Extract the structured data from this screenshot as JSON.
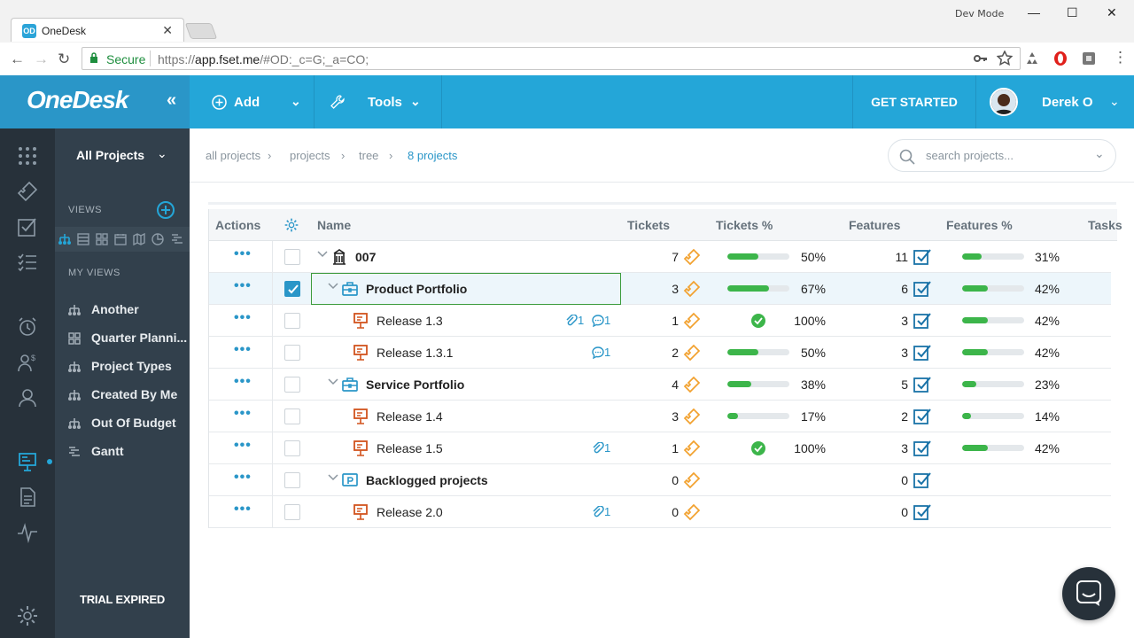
{
  "browser": {
    "tab_title": "OneDesk",
    "dev_mode": "Dev Mode",
    "secure_label": "Secure",
    "url_scheme": "https://",
    "url_host": "app.fset.me",
    "url_rest": "/#OD:_c=G;_a=CO;"
  },
  "header": {
    "logo": "OneDesk",
    "collapse": "«",
    "add_label": "Add",
    "tools_label": "Tools",
    "get_started": "GET STARTED",
    "user_name": "Derek O",
    "accent": "#24a6d8"
  },
  "sidebar": {
    "project_selector": "All Projects",
    "views_header": "VIEWS",
    "my_views_header": "MY VIEWS",
    "my_views": [
      {
        "label": "Another",
        "icon": "tree-icon"
      },
      {
        "label": "Quarter Planni...",
        "icon": "card-icon"
      },
      {
        "label": "Project Types",
        "icon": "tree-icon"
      },
      {
        "label": "Created By Me",
        "icon": "tree-icon"
      },
      {
        "label": "Out Of Budget",
        "icon": "tree-icon"
      },
      {
        "label": "Gantt",
        "icon": "gantt-icon"
      }
    ],
    "trial": "TRIAL EXPIRED"
  },
  "breadcrumb": {
    "a": "all projects",
    "b": "projects",
    "c": "tree",
    "d": "8 projects"
  },
  "search": {
    "placeholder": "search projects..."
  },
  "grid": {
    "columns": {
      "actions": "Actions",
      "name": "Name",
      "tickets": "Tickets",
      "tickets_pct": "Tickets %",
      "features": "Features",
      "features_pct": "Features %",
      "tasks": "Tasks"
    },
    "rows": [
      {
        "name": "007",
        "level": 0,
        "type": "portfolio-root",
        "tickets": "7",
        "tickets_pct": "50%",
        "tickets_frac": 0.5,
        "features": "11",
        "features_pct": "31%",
        "features_frac": 0.31
      },
      {
        "name": "Product Portfolio",
        "level": 1,
        "type": "portfolio",
        "tickets": "3",
        "tickets_pct": "67%",
        "tickets_frac": 0.67,
        "features": "6",
        "features_pct": "42%",
        "features_frac": 0.42,
        "checked": true
      },
      {
        "name": "Release 1.3",
        "level": 2,
        "type": "release",
        "attach": "1",
        "comments": "1",
        "tickets": "1",
        "tickets_pct": "100%",
        "tickets_frac": 1,
        "features": "3",
        "features_pct": "42%",
        "features_frac": 0.42
      },
      {
        "name": "Release 1.3.1",
        "level": 2,
        "type": "release",
        "comments": "1",
        "tickets": "2",
        "tickets_pct": "50%",
        "tickets_frac": 0.5,
        "features": "3",
        "features_pct": "42%",
        "features_frac": 0.42
      },
      {
        "name": "Service Portfolio",
        "level": 1,
        "type": "portfolio",
        "tickets": "4",
        "tickets_pct": "38%",
        "tickets_frac": 0.38,
        "features": "5",
        "features_pct": "23%",
        "features_frac": 0.23
      },
      {
        "name": "Release 1.4",
        "level": 2,
        "type": "release",
        "tickets": "3",
        "tickets_pct": "17%",
        "tickets_frac": 0.17,
        "features": "2",
        "features_pct": "14%",
        "features_frac": 0.14
      },
      {
        "name": "Release 1.5",
        "level": 2,
        "type": "release",
        "attach": "1",
        "tickets": "1",
        "tickets_pct": "100%",
        "tickets_frac": 1,
        "features": "3",
        "features_pct": "42%",
        "features_frac": 0.42
      },
      {
        "name": "Backlogged projects",
        "level": 1,
        "type": "backlog",
        "tickets": "0",
        "features": "0"
      },
      {
        "name": "Release 2.0",
        "level": 2,
        "type": "release",
        "attach": "1",
        "tickets": "0",
        "features": "0"
      }
    ]
  }
}
